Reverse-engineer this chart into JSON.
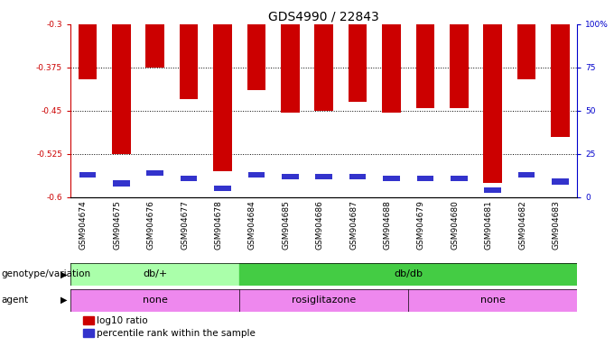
{
  "title": "GDS4990 / 22843",
  "samples": [
    "GSM904674",
    "GSM904675",
    "GSM904676",
    "GSM904677",
    "GSM904678",
    "GSM904684",
    "GSM904685",
    "GSM904686",
    "GSM904687",
    "GSM904688",
    "GSM904679",
    "GSM904680",
    "GSM904681",
    "GSM904682",
    "GSM904683"
  ],
  "log10_ratio": [
    -0.395,
    -0.525,
    -0.375,
    -0.43,
    -0.555,
    -0.415,
    -0.453,
    -0.45,
    -0.435,
    -0.453,
    -0.445,
    -0.445,
    -0.575,
    -0.395,
    -0.495
  ],
  "percentile_rank": [
    13,
    8,
    14,
    11,
    5,
    13,
    12,
    12,
    12,
    11,
    11,
    11,
    4,
    13,
    9
  ],
  "ylim_left": [
    -0.6,
    -0.3
  ],
  "ylim_right": [
    0,
    100
  ],
  "yticks_left": [
    -0.6,
    -0.525,
    -0.45,
    -0.375,
    -0.3
  ],
  "yticks_right": [
    0,
    25,
    50,
    75,
    100
  ],
  "bar_color": "#cc0000",
  "marker_color": "#3333cc",
  "tick_color_left": "#cc0000",
  "tick_color_right": "#0000cc",
  "geno_group1_color": "#aaffaa",
  "geno_group2_color": "#44cc44",
  "agent_color": "#ee88ee",
  "bar_width": 0.55,
  "title_fontsize": 10,
  "tick_fontsize": 6.5,
  "annot_fontsize": 7.5,
  "group_label_fontsize": 8
}
